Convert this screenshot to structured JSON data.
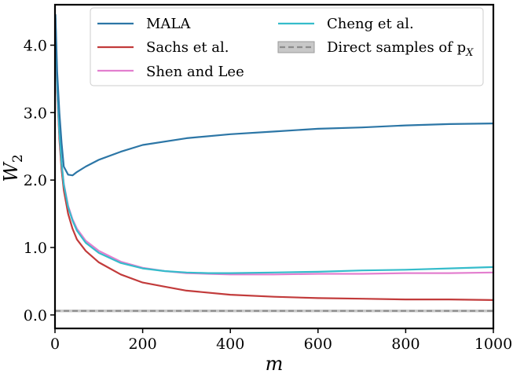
{
  "chart_data": {
    "type": "line",
    "title": "",
    "xlabel": "m",
    "ylabel_main": "W",
    "ylabel_sub": "2",
    "xlim": [
      0,
      1000
    ],
    "ylim": [
      -0.2,
      4.6
    ],
    "xticks": [
      0,
      200,
      400,
      600,
      800,
      1000
    ],
    "xtick_labels": [
      "0",
      "200",
      "400",
      "600",
      "800",
      "1000"
    ],
    "yticks": [
      0.0,
      1.0,
      2.0,
      3.0,
      4.0
    ],
    "ytick_labels": [
      "0.0",
      "1.0",
      "2.0",
      "3.0",
      "4.0"
    ],
    "legend_position": "top",
    "series": [
      {
        "name": "MALA",
        "color": "#2c76a6",
        "x": [
          1,
          5,
          10,
          15,
          20,
          30,
          40,
          50,
          70,
          100,
          150,
          200,
          300,
          400,
          500,
          600,
          700,
          800,
          900,
          1000
        ],
        "y": [
          4.45,
          3.6,
          3.0,
          2.55,
          2.2,
          2.08,
          2.07,
          2.12,
          2.2,
          2.3,
          2.42,
          2.52,
          2.62,
          2.68,
          2.72,
          2.76,
          2.78,
          2.81,
          2.83,
          2.84
        ]
      },
      {
        "name": "Sachs et al.",
        "color": "#c23b3b",
        "x": [
          1,
          5,
          10,
          15,
          20,
          30,
          40,
          50,
          70,
          100,
          150,
          200,
          250,
          300,
          400,
          500,
          600,
          700,
          800,
          900,
          1000
        ],
        "y": [
          4.3,
          3.3,
          2.6,
          2.15,
          1.85,
          1.5,
          1.28,
          1.12,
          0.95,
          0.78,
          0.6,
          0.48,
          0.42,
          0.36,
          0.3,
          0.27,
          0.25,
          0.24,
          0.23,
          0.23,
          0.22
        ]
      },
      {
        "name": "Shen and Lee",
        "color": "#e37fcf",
        "x": [
          1,
          5,
          10,
          15,
          20,
          30,
          40,
          50,
          70,
          100,
          150,
          200,
          250,
          300,
          350,
          400,
          500,
          600,
          700,
          800,
          900,
          1000
        ],
        "y": [
          4.35,
          3.35,
          2.7,
          2.25,
          1.95,
          1.62,
          1.42,
          1.28,
          1.1,
          0.95,
          0.79,
          0.7,
          0.65,
          0.62,
          0.61,
          0.6,
          0.6,
          0.61,
          0.61,
          0.62,
          0.62,
          0.63
        ]
      },
      {
        "name": "Cheng et al.",
        "color": "#35bccb",
        "x": [
          1,
          5,
          10,
          15,
          20,
          30,
          40,
          50,
          70,
          100,
          150,
          200,
          250,
          300,
          350,
          400,
          500,
          600,
          700,
          800,
          900,
          1000
        ],
        "y": [
          4.4,
          3.4,
          2.7,
          2.25,
          1.93,
          1.6,
          1.4,
          1.25,
          1.07,
          0.92,
          0.77,
          0.69,
          0.65,
          0.63,
          0.62,
          0.62,
          0.63,
          0.64,
          0.66,
          0.67,
          0.69,
          0.71
        ]
      }
    ],
    "reference": {
      "name": "Direct samples of p",
      "name_sub": "X",
      "value": 0.06,
      "band": [
        0.04,
        0.08
      ],
      "line_color": "#8c8c8c",
      "band_color": "#c8c8c8"
    }
  }
}
